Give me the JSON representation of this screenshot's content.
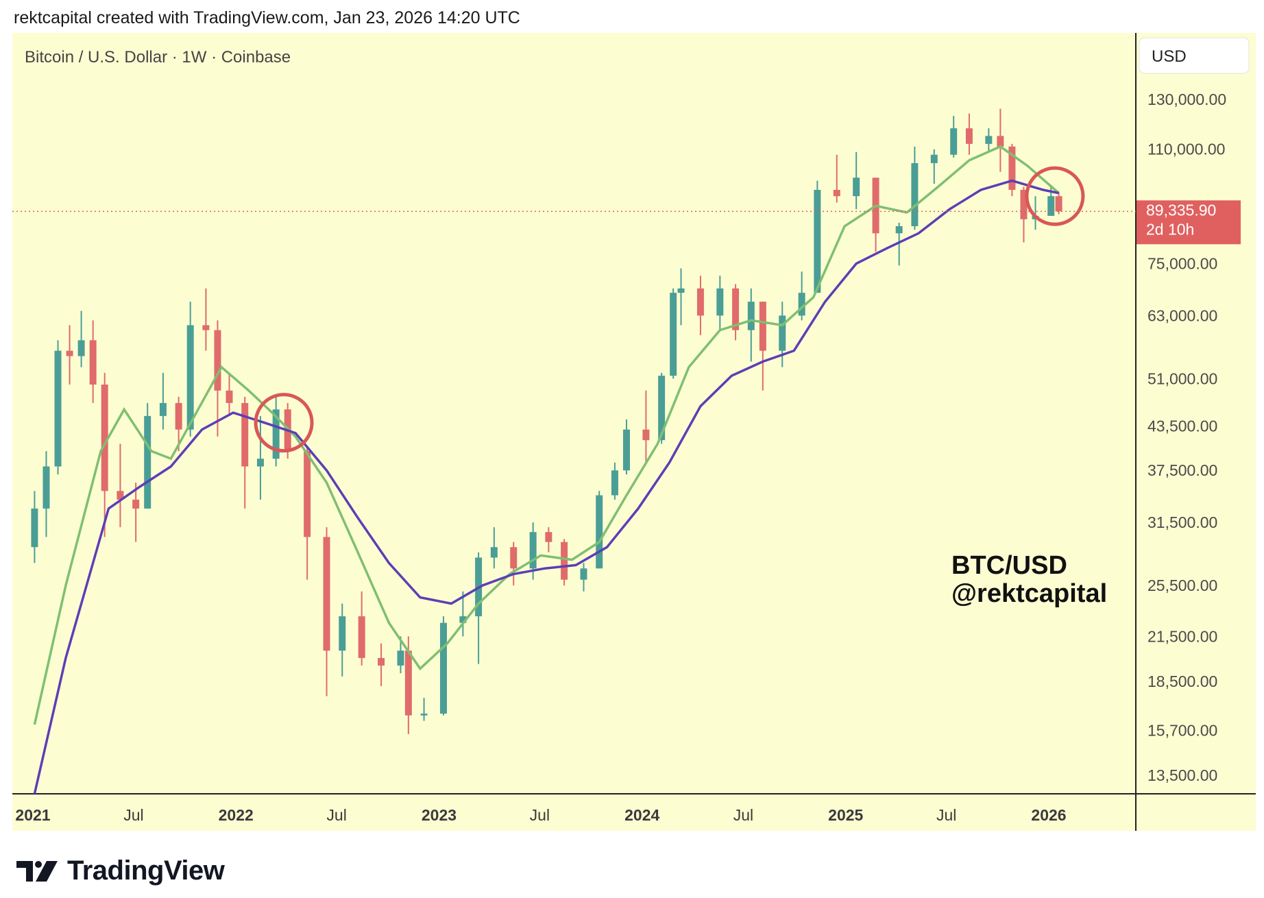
{
  "header": {
    "attribution": "rektcapital created with TradingView.com, Jan 23, 2026 14:20 UTC"
  },
  "brand": {
    "name": "TradingView",
    "logo": "tradingview-logo"
  },
  "chart_data": {
    "type": "candlestick",
    "symbol_label": "Bitcoin / U.S. Dollar · 1W · Coinbase",
    "watermark": [
      "BTC/USD",
      "@rektcapital"
    ],
    "currency_button": "USD",
    "y_scale": "log",
    "y_ticks": [
      "130,000.00",
      "110,000.00",
      "89,335.90",
      "75,000.00",
      "63,000.00",
      "51,000.00",
      "43,500.00",
      "37,500.00",
      "31,500.00",
      "25,500.00",
      "21,500.00",
      "18,500.00",
      "15,700.00",
      "13,500.00"
    ],
    "y_tick_values": [
      130000,
      110000,
      75000,
      63000,
      51000,
      43500,
      37500,
      31500,
      25500,
      21500,
      18500,
      15700,
      13500
    ],
    "x_ticks": [
      {
        "label": "2021",
        "date": "2021-01-01",
        "bold": true
      },
      {
        "label": "Jul",
        "date": "2021-07-01",
        "bold": false
      },
      {
        "label": "2022",
        "date": "2022-01-01",
        "bold": true
      },
      {
        "label": "Jul",
        "date": "2022-07-01",
        "bold": false
      },
      {
        "label": "2023",
        "date": "2023-01-01",
        "bold": true
      },
      {
        "label": "Jul",
        "date": "2023-07-01",
        "bold": false
      },
      {
        "label": "2024",
        "date": "2024-01-01",
        "bold": true
      },
      {
        "label": "Jul",
        "date": "2024-07-01",
        "bold": false
      },
      {
        "label": "2025",
        "date": "2025-01-01",
        "bold": true
      },
      {
        "label": "Jul",
        "date": "2025-07-01",
        "bold": false
      },
      {
        "label": "2026",
        "date": "2026-01-01",
        "bold": true
      }
    ],
    "current_price": {
      "value": 89335.9,
      "label": "89,335.90",
      "countdown": "2d 10h",
      "color": "#e06060"
    },
    "colors": {
      "background": "#fdfdd2",
      "up": "#4a9e96",
      "down": "#e06b6b",
      "ma_green": "#7fbf72",
      "ma_purple": "#5b3fb5",
      "circle": "#d95757"
    },
    "series": [
      {
        "type": "candles",
        "points": [
          {
            "d": "2021-01-04",
            "o": 29000,
            "h": 35000,
            "l": 27500,
            "c": 33000
          },
          {
            "d": "2021-01-25",
            "o": 33000,
            "h": 40000,
            "l": 30000,
            "c": 38000
          },
          {
            "d": "2021-02-15",
            "o": 38000,
            "h": 58000,
            "l": 37000,
            "c": 56000
          },
          {
            "d": "2021-03-08",
            "o": 56000,
            "h": 61000,
            "l": 50000,
            "c": 55000
          },
          {
            "d": "2021-03-29",
            "o": 55000,
            "h": 64000,
            "l": 53000,
            "c": 58000
          },
          {
            "d": "2021-04-19",
            "o": 58000,
            "h": 62000,
            "l": 47000,
            "c": 50000
          },
          {
            "d": "2021-05-10",
            "o": 50000,
            "h": 52000,
            "l": 30000,
            "c": 35000
          },
          {
            "d": "2021-06-07",
            "o": 35000,
            "h": 41000,
            "l": 31000,
            "c": 34000
          },
          {
            "d": "2021-07-05",
            "o": 34000,
            "h": 36000,
            "l": 29500,
            "c": 33000
          },
          {
            "d": "2021-07-26",
            "o": 33000,
            "h": 47000,
            "l": 33000,
            "c": 45000
          },
          {
            "d": "2021-08-23",
            "o": 45000,
            "h": 52000,
            "l": 43000,
            "c": 47000
          },
          {
            "d": "2021-09-20",
            "o": 47000,
            "h": 48000,
            "l": 40000,
            "c": 43000
          },
          {
            "d": "2021-10-11",
            "o": 43000,
            "h": 66000,
            "l": 42000,
            "c": 61000
          },
          {
            "d": "2021-11-08",
            "o": 61000,
            "h": 69000,
            "l": 56000,
            "c": 60000
          },
          {
            "d": "2021-11-29",
            "o": 60000,
            "h": 62000,
            "l": 42000,
            "c": 49000
          },
          {
            "d": "2021-12-20",
            "o": 49000,
            "h": 52000,
            "l": 45000,
            "c": 47000
          },
          {
            "d": "2022-01-17",
            "o": 47000,
            "h": 48000,
            "l": 33000,
            "c": 38000
          },
          {
            "d": "2022-02-14",
            "o": 38000,
            "h": 45000,
            "l": 34000,
            "c": 39000
          },
          {
            "d": "2022-03-14",
            "o": 39000,
            "h": 48000,
            "l": 38000,
            "c": 46000
          },
          {
            "d": "2022-04-04",
            "o": 46000,
            "h": 47000,
            "l": 39000,
            "c": 40000
          },
          {
            "d": "2022-05-09",
            "o": 40000,
            "h": 40500,
            "l": 26000,
            "c": 30000
          },
          {
            "d": "2022-06-13",
            "o": 30000,
            "h": 31000,
            "l": 17600,
            "c": 20500
          },
          {
            "d": "2022-07-11",
            "o": 20500,
            "h": 24000,
            "l": 18800,
            "c": 23000
          },
          {
            "d": "2022-08-15",
            "o": 23000,
            "h": 25000,
            "l": 19500,
            "c": 20000
          },
          {
            "d": "2022-09-19",
            "o": 20000,
            "h": 21000,
            "l": 18200,
            "c": 19500
          },
          {
            "d": "2022-10-24",
            "o": 19500,
            "h": 21500,
            "l": 19000,
            "c": 20500
          },
          {
            "d": "2022-11-07",
            "o": 20500,
            "h": 21500,
            "l": 15500,
            "c": 16500
          },
          {
            "d": "2022-12-05",
            "o": 16500,
            "h": 17500,
            "l": 16200,
            "c": 16600
          },
          {
            "d": "2023-01-09",
            "o": 16600,
            "h": 23000,
            "l": 16500,
            "c": 22500
          },
          {
            "d": "2023-02-13",
            "o": 22500,
            "h": 25000,
            "l": 21500,
            "c": 23000
          },
          {
            "d": "2023-03-13",
            "o": 23000,
            "h": 28500,
            "l": 19600,
            "c": 28000
          },
          {
            "d": "2023-04-10",
            "o": 28000,
            "h": 31000,
            "l": 27000,
            "c": 29000
          },
          {
            "d": "2023-05-15",
            "o": 29000,
            "h": 29500,
            "l": 25500,
            "c": 27000
          },
          {
            "d": "2023-06-19",
            "o": 27000,
            "h": 31500,
            "l": 26000,
            "c": 30500
          },
          {
            "d": "2023-07-17",
            "o": 30500,
            "h": 31000,
            "l": 28500,
            "c": 29500
          },
          {
            "d": "2023-08-14",
            "o": 29500,
            "h": 29800,
            "l": 25500,
            "c": 26000
          },
          {
            "d": "2023-09-18",
            "o": 26000,
            "h": 27500,
            "l": 25000,
            "c": 27000
          },
          {
            "d": "2023-10-16",
            "o": 27000,
            "h": 35000,
            "l": 27000,
            "c": 34500
          },
          {
            "d": "2023-11-13",
            "o": 34500,
            "h": 38500,
            "l": 34000,
            "c": 37500
          },
          {
            "d": "2023-12-04",
            "o": 37500,
            "h": 44500,
            "l": 37000,
            "c": 43000
          },
          {
            "d": "2024-01-08",
            "o": 43000,
            "h": 49000,
            "l": 38500,
            "c": 41500
          },
          {
            "d": "2024-02-05",
            "o": 41500,
            "h": 52000,
            "l": 41000,
            "c": 51500
          },
          {
            "d": "2024-02-26",
            "o": 51500,
            "h": 69000,
            "l": 51000,
            "c": 68000
          },
          {
            "d": "2024-03-11",
            "o": 68000,
            "h": 73800,
            "l": 61000,
            "c": 69000
          },
          {
            "d": "2024-04-15",
            "o": 69000,
            "h": 72000,
            "l": 59000,
            "c": 63000
          },
          {
            "d": "2024-05-20",
            "o": 63000,
            "h": 72000,
            "l": 60000,
            "c": 69000
          },
          {
            "d": "2024-06-17",
            "o": 69000,
            "h": 70000,
            "l": 58000,
            "c": 60000
          },
          {
            "d": "2024-07-15",
            "o": 60000,
            "h": 69000,
            "l": 54000,
            "c": 66000
          },
          {
            "d": "2024-08-05",
            "o": 66000,
            "h": 66000,
            "l": 49000,
            "c": 56000
          },
          {
            "d": "2024-09-09",
            "o": 56000,
            "h": 66000,
            "l": 53000,
            "c": 63000
          },
          {
            "d": "2024-10-14",
            "o": 63000,
            "h": 73000,
            "l": 62000,
            "c": 68000
          },
          {
            "d": "2024-11-11",
            "o": 68000,
            "h": 99000,
            "l": 68000,
            "c": 96000
          },
          {
            "d": "2024-12-16",
            "o": 96000,
            "h": 108000,
            "l": 92000,
            "c": 94000
          },
          {
            "d": "2025-01-20",
            "o": 94000,
            "h": 109000,
            "l": 90000,
            "c": 100000
          },
          {
            "d": "2025-02-24",
            "o": 100000,
            "h": 100000,
            "l": 78000,
            "c": 83000
          },
          {
            "d": "2025-04-07",
            "o": 83000,
            "h": 86000,
            "l": 74500,
            "c": 85000
          },
          {
            "d": "2025-05-05",
            "o": 85000,
            "h": 111000,
            "l": 84000,
            "c": 105000
          },
          {
            "d": "2025-06-09",
            "o": 105000,
            "h": 110000,
            "l": 98000,
            "c": 108000
          },
          {
            "d": "2025-07-14",
            "o": 108000,
            "h": 123000,
            "l": 107000,
            "c": 118000
          },
          {
            "d": "2025-08-11",
            "o": 118000,
            "h": 124000,
            "l": 108000,
            "c": 112000
          },
          {
            "d": "2025-09-15",
            "o": 112000,
            "h": 118000,
            "l": 109000,
            "c": 115000
          },
          {
            "d": "2025-10-06",
            "o": 115000,
            "h": 126000,
            "l": 102000,
            "c": 111000
          },
          {
            "d": "2025-10-27",
            "o": 111000,
            "h": 112000,
            "l": 94000,
            "c": 96000
          },
          {
            "d": "2025-11-17",
            "o": 96000,
            "h": 97000,
            "l": 80500,
            "c": 87000
          },
          {
            "d": "2025-12-08",
            "o": 87000,
            "h": 94000,
            "l": 84000,
            "c": 88000
          },
          {
            "d": "2026-01-05",
            "o": 88000,
            "h": 97500,
            "l": 88000,
            "c": 94000
          },
          {
            "d": "2026-01-19",
            "o": 94000,
            "h": 95500,
            "l": 88500,
            "c": 89335.9
          }
        ]
      },
      {
        "type": "line",
        "color_key": "ma_green",
        "points": [
          {
            "d": "2021-01-04",
            "v": 16000
          },
          {
            "d": "2021-03-01",
            "v": 25500
          },
          {
            "d": "2021-05-03",
            "v": 40000
          },
          {
            "d": "2021-06-14",
            "v": 46000
          },
          {
            "d": "2021-08-02",
            "v": 40000
          },
          {
            "d": "2021-09-06",
            "v": 39000
          },
          {
            "d": "2021-10-25",
            "v": 46000
          },
          {
            "d": "2021-12-06",
            "v": 53000
          },
          {
            "d": "2022-01-24",
            "v": 49000
          },
          {
            "d": "2022-03-07",
            "v": 45500
          },
          {
            "d": "2022-04-18",
            "v": 42000
          },
          {
            "d": "2022-06-13",
            "v": 36000
          },
          {
            "d": "2022-08-08",
            "v": 28500
          },
          {
            "d": "2022-10-03",
            "v": 22500
          },
          {
            "d": "2022-11-28",
            "v": 19300
          },
          {
            "d": "2023-01-16",
            "v": 21000
          },
          {
            "d": "2023-03-13",
            "v": 24000
          },
          {
            "d": "2023-05-08",
            "v": 26500
          },
          {
            "d": "2023-07-03",
            "v": 28200
          },
          {
            "d": "2023-08-28",
            "v": 27800
          },
          {
            "d": "2023-10-16",
            "v": 29500
          },
          {
            "d": "2023-12-04",
            "v": 34500
          },
          {
            "d": "2024-01-29",
            "v": 41000
          },
          {
            "d": "2024-03-25",
            "v": 53000
          },
          {
            "d": "2024-05-20",
            "v": 60000
          },
          {
            "d": "2024-07-15",
            "v": 62000
          },
          {
            "d": "2024-09-09",
            "v": 61000
          },
          {
            "d": "2024-11-04",
            "v": 67000
          },
          {
            "d": "2024-12-30",
            "v": 85000
          },
          {
            "d": "2025-02-24",
            "v": 91000
          },
          {
            "d": "2025-04-21",
            "v": 89000
          },
          {
            "d": "2025-06-16",
            "v": 97000
          },
          {
            "d": "2025-08-11",
            "v": 106000
          },
          {
            "d": "2025-10-06",
            "v": 111000
          },
          {
            "d": "2025-11-24",
            "v": 104000
          },
          {
            "d": "2026-01-19",
            "v": 95000
          }
        ]
      },
      {
        "type": "line",
        "color_key": "ma_purple",
        "points": [
          {
            "d": "2021-01-04",
            "v": 12500
          },
          {
            "d": "2021-03-01",
            "v": 20000
          },
          {
            "d": "2021-05-17",
            "v": 33000
          },
          {
            "d": "2021-07-12",
            "v": 35500
          },
          {
            "d": "2021-09-06",
            "v": 38000
          },
          {
            "d": "2021-11-01",
            "v": 43000
          },
          {
            "d": "2021-12-27",
            "v": 45500
          },
          {
            "d": "2022-02-21",
            "v": 44000
          },
          {
            "d": "2022-04-18",
            "v": 42500
          },
          {
            "d": "2022-06-13",
            "v": 37500
          },
          {
            "d": "2022-08-08",
            "v": 32000
          },
          {
            "d": "2022-10-03",
            "v": 27500
          },
          {
            "d": "2022-11-28",
            "v": 24500
          },
          {
            "d": "2023-01-23",
            "v": 24000
          },
          {
            "d": "2023-03-20",
            "v": 25500
          },
          {
            "d": "2023-05-15",
            "v": 26500
          },
          {
            "d": "2023-07-10",
            "v": 27000
          },
          {
            "d": "2023-09-04",
            "v": 27300
          },
          {
            "d": "2023-10-30",
            "v": 29000
          },
          {
            "d": "2023-12-25",
            "v": 33000
          },
          {
            "d": "2024-02-19",
            "v": 38500
          },
          {
            "d": "2024-04-15",
            "v": 46500
          },
          {
            "d": "2024-06-10",
            "v": 51500
          },
          {
            "d": "2024-08-05",
            "v": 54000
          },
          {
            "d": "2024-09-30",
            "v": 56000
          },
          {
            "d": "2024-11-25",
            "v": 66000
          },
          {
            "d": "2025-01-20",
            "v": 75000
          },
          {
            "d": "2025-03-17",
            "v": 79000
          },
          {
            "d": "2025-05-12",
            "v": 83000
          },
          {
            "d": "2025-07-07",
            "v": 90000
          },
          {
            "d": "2025-09-01",
            "v": 96000
          },
          {
            "d": "2025-10-27",
            "v": 99000
          },
          {
            "d": "2025-12-22",
            "v": 96000
          },
          {
            "d": "2026-01-19",
            "v": 95000
          }
        ]
      }
    ],
    "annotations": [
      {
        "type": "circle",
        "d": "2022-03-28",
        "v": 44000
      },
      {
        "type": "circle",
        "d": "2026-01-12",
        "v": 94000
      }
    ]
  }
}
